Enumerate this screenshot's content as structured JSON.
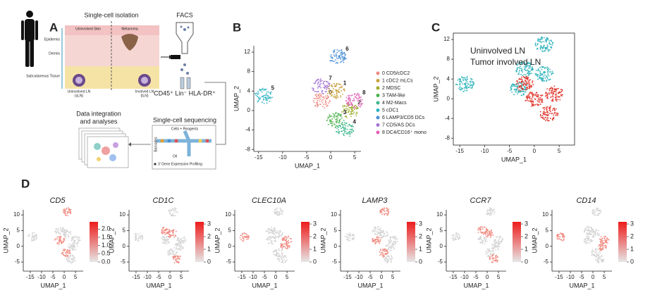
{
  "panel_labels": [
    "A",
    "B",
    "C",
    "D"
  ],
  "schematic": {
    "isolation_title": "Single-cell isolation",
    "facs_title": "FACS",
    "skin": "Uninvolved Skin",
    "melanoma": "Melanoma",
    "layers": [
      "Epidermis",
      "Dermis",
      "Subcutaneous Tissue"
    ],
    "ln_uninvolved": [
      "Uninvolved LN",
      "(sLN)"
    ],
    "ln_involved": [
      "Involved LN",
      "(tLN)"
    ],
    "markers": "CD45⁺ Lin⁻ HLA-DR⁺",
    "sequencing_title": "Single-cell sequencing",
    "reagents": "Cells + Reagents",
    "barcodes": "Barcodes",
    "oil": "Oil",
    "profiling": "3' Gene Expression Profiling",
    "analysis_title": [
      "Data integration",
      "and analyses"
    ]
  },
  "chart_data": [
    {
      "type": "scatter",
      "xlabel": "UMAP_1",
      "ylabel": "UMAP_2",
      "xlim": [
        -16,
        6.3
      ],
      "ylim": [
        -8.4,
        13.3
      ],
      "xticks": [
        -15,
        -10,
        -5,
        0,
        5
      ],
      "yticks": [
        -8,
        -4,
        0,
        4,
        8,
        12
      ],
      "series": [
        {
          "name": "0 CD5/cDC2",
          "label": "0",
          "color": "#f08a80",
          "x": [
            -2
          ],
          "values": [
            2
          ]
        },
        {
          "name": "1 cDC2 mLCs",
          "label": "1",
          "color": "#c9a13a",
          "x": [
            1
          ],
          "values": [
            4
          ]
        },
        {
          "name": "2 MDSC",
          "label": "2",
          "color": "#9fae2f",
          "x": [
            4
          ],
          "values": [
            0
          ]
        },
        {
          "name": "3 TAM-like",
          "label": "3",
          "color": "#4fb34f",
          "x": [
            1
          ],
          "values": [
            -2
          ]
        },
        {
          "name": "4 M2-Macs",
          "label": "4",
          "color": "#3fb88d",
          "x": [
            3
          ],
          "values": [
            -4
          ]
        },
        {
          "name": "5 cDC1",
          "label": "5",
          "color": "#2fb4c4",
          "x": [
            -14
          ],
          "values": [
            3
          ]
        },
        {
          "name": "6 LAMP3/CD5 DCs",
          "label": "6",
          "color": "#4a8fd6",
          "x": [
            1.5
          ],
          "values": [
            11
          ]
        },
        {
          "name": "7 CD5/AS DCs",
          "label": "7",
          "color": "#a574d6",
          "x": [
            -2
          ],
          "values": [
            5
          ]
        },
        {
          "name": "8 DC4/CD16⁺ mono",
          "label": "8",
          "color": "#e062b8",
          "x": [
            5
          ],
          "values": [
            2
          ]
        }
      ]
    },
    {
      "type": "scatter",
      "xlabel": "UMAP_1",
      "ylabel": "UMAP_2",
      "xlim": [
        -16.3,
        8.1
      ],
      "ylim": [
        -9.4,
        13.3
      ],
      "xticks": [
        -15,
        -10,
        -5,
        0,
        5
      ],
      "yticks": [
        -8,
        -4,
        0,
        4,
        8,
        12
      ],
      "series": [
        {
          "name": "Uninvolved LN",
          "color": "#33b5bd",
          "x": [
            -14,
            2,
            -2,
            2,
            -3
          ],
          "values": [
            3,
            11,
            6,
            5,
            2
          ]
        },
        {
          "name": "Tumor involved LN",
          "color": "#e0382f",
          "x": [
            0,
            3,
            -2,
            4
          ],
          "values": [
            0,
            -3,
            3,
            1
          ]
        }
      ]
    },
    {
      "type": "feature",
      "title": "CD5",
      "xlabel": "UMAP_1",
      "ylabel": "UMAP_2",
      "xlim": [
        -18.1,
        8.4
      ],
      "ylim": [
        -7.9,
        11.6
      ],
      "xticks": [
        -15,
        -10,
        -5,
        0,
        5
      ],
      "yticks": [
        -5,
        0,
        5,
        10
      ],
      "colorbar_lim": [
        0,
        2.44
      ],
      "colorbar_ticks": [
        {
          "value": 0,
          "label": "0.0"
        },
        {
          "value": 0.5,
          "label": "0.5"
        },
        {
          "value": 1,
          "label": "1.0"
        },
        {
          "value": 1.5,
          "label": "1.5"
        },
        {
          "value": 2,
          "label": "2.0"
        }
      ]
    },
    {
      "type": "feature",
      "title": "CD1C",
      "xlabel": "UMAP_1",
      "ylabel": "UMAP_2",
      "xlim": [
        -18.1,
        8.4
      ],
      "ylim": [
        -7.9,
        11.6
      ],
      "xticks": [
        -15,
        -10,
        -5,
        0,
        5
      ],
      "yticks": [
        -5,
        0,
        5,
        10
      ],
      "colorbar_lim": [
        0,
        3.17
      ],
      "colorbar_ticks": [
        0,
        1,
        2,
        3
      ]
    },
    {
      "type": "feature",
      "title": "CLEC10A",
      "xlabel": "UMAP_1",
      "ylabel": "UMAP_2",
      "xlim": [
        -18.1,
        8.4
      ],
      "ylim": [
        -7.9,
        11.6
      ],
      "xticks": [
        -15,
        -10,
        -5,
        0,
        5
      ],
      "yticks": [
        -5,
        0,
        5,
        10
      ],
      "colorbar_lim": [
        0,
        3.17
      ],
      "colorbar_ticks": [
        0,
        1,
        2,
        3
      ]
    },
    {
      "type": "feature",
      "title": "LAMP3",
      "xlabel": "UMAP_1",
      "ylabel": "UMAP_2",
      "xlim": [
        -18.1,
        8.4
      ],
      "ylim": [
        -7.9,
        11.6
      ],
      "xticks": [
        -15,
        -10,
        -5,
        0,
        5
      ],
      "yticks": [
        -5,
        0,
        5,
        10
      ],
      "colorbar_lim": [
        0,
        3.17
      ],
      "colorbar_ticks": [
        0,
        1,
        2,
        3
      ]
    },
    {
      "type": "feature",
      "title": "CCR7",
      "xlabel": "UMAP_1",
      "ylabel": "UMAP_2",
      "xlim": [
        -18.1,
        8.4
      ],
      "ylim": [
        -7.9,
        11.6
      ],
      "xticks": [
        -15,
        -10,
        -5,
        0,
        5
      ],
      "yticks": [
        -5,
        0,
        5,
        10
      ],
      "colorbar_lim": [
        0,
        3.17
      ],
      "colorbar_ticks": [
        0,
        1,
        2,
        3
      ]
    },
    {
      "type": "feature",
      "title": "CD14",
      "xlabel": "UMAP_1",
      "ylabel": "UMAP_2",
      "xlim": [
        -18.1,
        8.4
      ],
      "ylim": [
        -7.9,
        11.6
      ],
      "xticks": [
        -15,
        -10,
        -5,
        0,
        5
      ],
      "yticks": [
        -5,
        0,
        5,
        10
      ],
      "colorbar_lim": [
        0,
        3.17
      ],
      "colorbar_ticks": [
        0,
        1,
        2,
        3
      ]
    }
  ]
}
